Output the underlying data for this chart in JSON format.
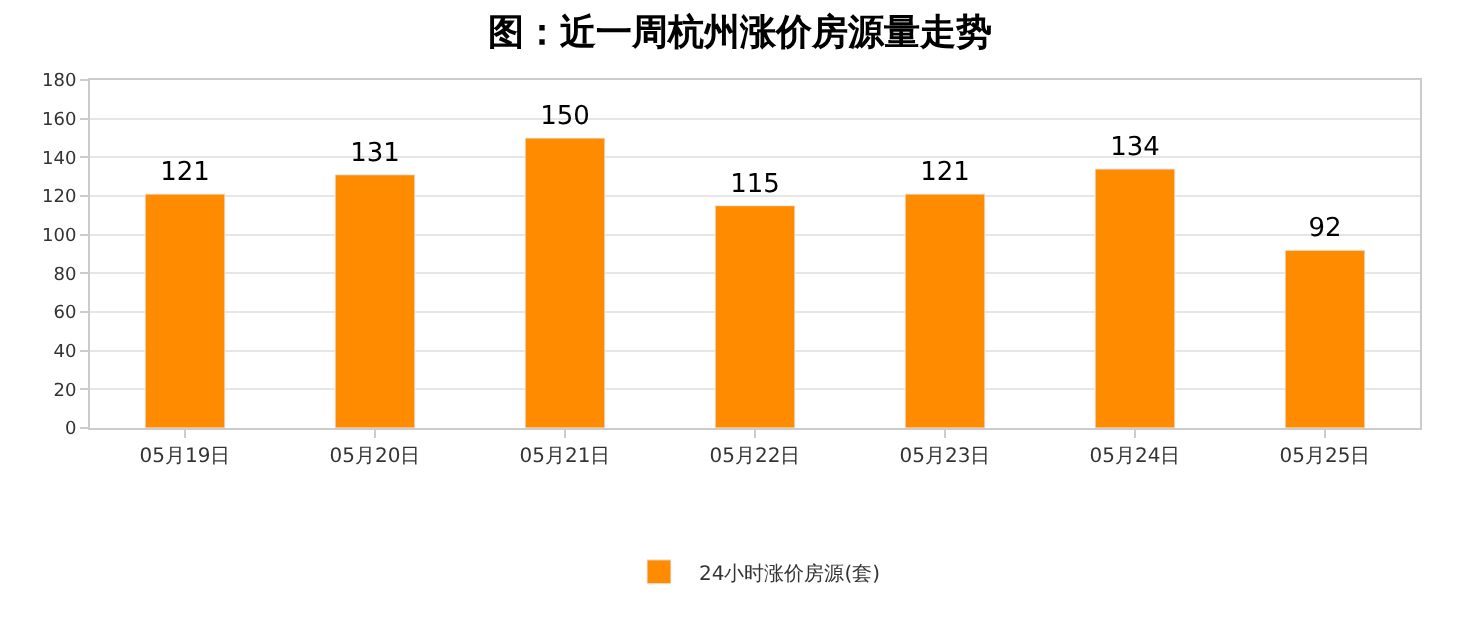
{
  "chart_data": {
    "type": "bar",
    "title": "图：近一周杭州涨价房源量走势",
    "categories": [
      "05月19日",
      "05月20日",
      "05月21日",
      "05月22日",
      "05月23日",
      "05月24日",
      "05月25日"
    ],
    "series": [
      {
        "name": "24小时涨价房源(套)",
        "color": "#ff8c00",
        "values": [
          121,
          131,
          150,
          115,
          121,
          134,
          92
        ]
      }
    ],
    "ylim": [
      0,
      180
    ],
    "yticks": [
      0,
      20,
      40,
      60,
      80,
      100,
      120,
      140,
      160,
      180
    ],
    "grid": "y",
    "legend": "bottom",
    "data_labels": true
  }
}
